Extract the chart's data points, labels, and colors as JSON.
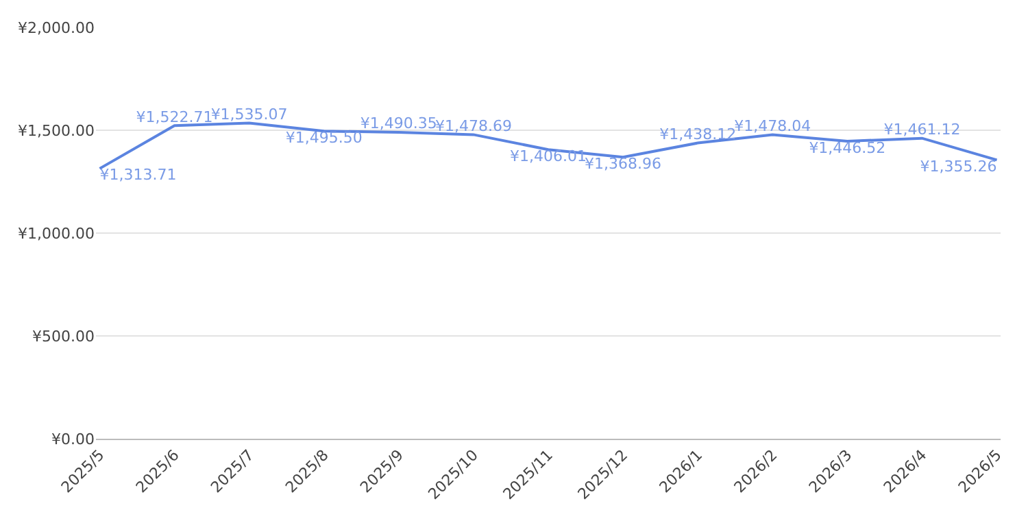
{
  "chart_data": {
    "type": "line",
    "categories": [
      "2025/5",
      "2025/6",
      "2025/7",
      "2025/8",
      "2025/9",
      "2025/10",
      "2025/11",
      "2025/12",
      "2026/1",
      "2026/2",
      "2026/3",
      "2026/4",
      "2026/5"
    ],
    "series": [
      {
        "color": "#5b84e0",
        "values": [
          1313.71,
          1522.71,
          1535.07,
          1495.5,
          1490.35,
          1478.69,
          1406.01,
          1368.96,
          1438.12,
          1478.04,
          1446.52,
          1461.12,
          1355.26
        ],
        "value_labels": [
          "¥1,313.71",
          "¥1,522.71",
          "¥1,535.07",
          "¥1,495.50",
          "¥1,490.35",
          "¥1,478.69",
          "¥1,406.01",
          "¥1,368.96",
          "¥1,438.12",
          "¥1,478.04",
          "¥1,446.52",
          "¥1,461.12",
          "¥1,355.26"
        ]
      }
    ],
    "ylim": [
      0,
      2000
    ],
    "yticks": [
      {
        "value": 0,
        "label": "¥0.00"
      },
      {
        "value": 500,
        "label": "¥500.00"
      },
      {
        "value": 1000,
        "label": "¥1,000.00"
      },
      {
        "value": 1500,
        "label": "¥1,500.00"
      },
      {
        "value": 2000,
        "label": "¥2,000.00"
      }
    ],
    "grid": "y",
    "marker": "none",
    "line_style": "solid"
  }
}
